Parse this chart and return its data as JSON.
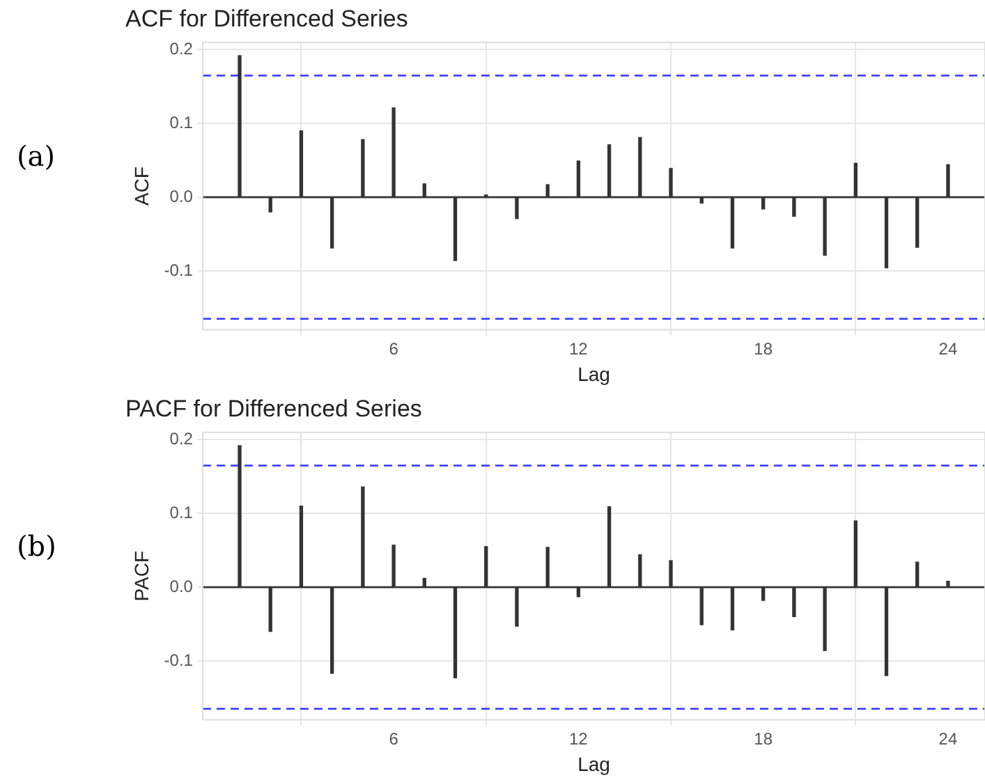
{
  "chart_data": [
    {
      "type": "bar",
      "title": "ACF for Differenced Series",
      "xlabel": "Lag",
      "ylabel": "ACF",
      "annotations": [
        "(a)"
      ],
      "x": [
        1,
        2,
        3,
        4,
        5,
        6,
        7,
        8,
        9,
        10,
        11,
        12,
        13,
        14,
        15,
        16,
        17,
        18,
        19,
        20,
        21,
        22,
        23,
        24
      ],
      "values": [
        0.192,
        -0.02,
        0.09,
        -0.069,
        0.078,
        0.121,
        0.018,
        -0.086,
        0.003,
        -0.029,
        0.017,
        0.049,
        0.071,
        0.081,
        0.039,
        -0.008,
        -0.069,
        -0.016,
        -0.026,
        -0.079,
        0.046,
        -0.096,
        -0.068,
        0.044
      ],
      "color": "#333333",
      "xlim": [
        -0.2,
        25.2
      ],
      "xticks": [
        6,
        12,
        18,
        24
      ],
      "ylim": [
        -0.18,
        0.21
      ],
      "yticks": [
        -0.1,
        {
          "value": 0,
          "label": "0.0"
        },
        0.1,
        0.2
      ],
      "grid": true,
      "ref_lines": [
        {
          "axis": "y",
          "value": 0,
          "color": "#333333",
          "line_style": "solid"
        },
        {
          "axis": "y",
          "value": 0.165,
          "color": "#3333ff",
          "line_style": "dashed"
        },
        {
          "axis": "y",
          "value": -0.165,
          "color": "#3333ff",
          "line_style": "dashed"
        }
      ]
    },
    {
      "type": "bar",
      "title": "PACF for Differenced Series",
      "xlabel": "Lag",
      "ylabel": "PACF",
      "annotations": [
        "(b)"
      ],
      "x": [
        1,
        2,
        3,
        4,
        5,
        6,
        7,
        8,
        9,
        10,
        11,
        12,
        13,
        14,
        15,
        16,
        17,
        18,
        19,
        20,
        21,
        22,
        23,
        24
      ],
      "values": [
        0.192,
        -0.06,
        0.11,
        -0.117,
        0.136,
        0.057,
        0.012,
        -0.123,
        0.055,
        -0.053,
        0.054,
        -0.013,
        0.109,
        0.044,
        0.036,
        -0.051,
        -0.058,
        -0.018,
        -0.04,
        -0.086,
        0.09,
        -0.12,
        0.034,
        0.008
      ],
      "color": "#333333",
      "xlim": [
        -0.2,
        25.2
      ],
      "xticks": [
        6,
        12,
        18,
        24
      ],
      "ylim": [
        -0.18,
        0.21
      ],
      "yticks": [
        -0.1,
        {
          "value": 0,
          "label": "0.0"
        },
        0.1,
        0.2
      ],
      "grid": true,
      "ref_lines": [
        {
          "axis": "y",
          "value": 0,
          "color": "#333333",
          "line_style": "solid"
        },
        {
          "axis": "y",
          "value": 0.165,
          "color": "#3333ff",
          "line_style": "dashed"
        },
        {
          "axis": "y",
          "value": -0.165,
          "color": "#3333ff",
          "line_style": "dashed"
        }
      ]
    }
  ]
}
